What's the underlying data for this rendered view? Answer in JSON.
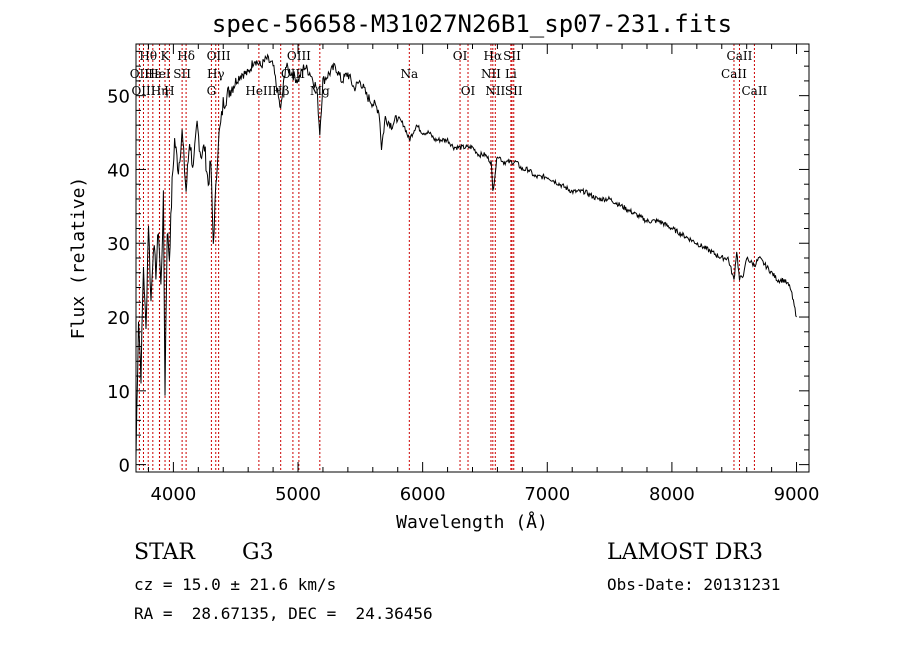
{
  "chart_data": {
    "type": "line",
    "title": "spec-56658-M31027N26B1_sp07-231.fits",
    "xlabel": "Wavelength (Å)",
    "ylabel": "Flux (relative)",
    "xlim": [
      3700,
      9100
    ],
    "ylim": [
      -1,
      57
    ],
    "xticks": [
      4000,
      5000,
      6000,
      7000,
      8000,
      9000
    ],
    "yticks": [
      0,
      10,
      20,
      30,
      40,
      50
    ],
    "line_color": "#cc0000",
    "series": [
      {
        "name": "flux",
        "color": "#000000",
        "x": [
          3700,
          3720,
          3740,
          3760,
          3780,
          3800,
          3820,
          3840,
          3860,
          3880,
          3900,
          3920,
          3933,
          3950,
          3968,
          3990,
          4010,
          4040,
          4070,
          4102,
          4130,
          4160,
          4190,
          4220,
          4250,
          4280,
          4300,
          4320,
          4340,
          4360,
          4380,
          4400,
          4430,
          4460,
          4500,
          4550,
          4600,
          4650,
          4700,
          4750,
          4800,
          4861,
          4900,
          4950,
          5000,
          5050,
          5100,
          5150,
          5175,
          5200,
          5250,
          5300,
          5350,
          5400,
          5450,
          5500,
          5550,
          5600,
          5650,
          5670,
          5700,
          5750,
          5800,
          5850,
          5893,
          5950,
          6000,
          6050,
          6100,
          6150,
          6200,
          6250,
          6300,
          6350,
          6400,
          6450,
          6500,
          6550,
          6563,
          6600,
          6650,
          6700,
          6750,
          6800,
          6850,
          6900,
          7000,
          7100,
          7200,
          7300,
          7400,
          7500,
          7600,
          7700,
          7800,
          7900,
          8000,
          8100,
          8200,
          8300,
          8400,
          8450,
          8498,
          8520,
          8542,
          8580,
          8600,
          8662,
          8700,
          8750,
          8800,
          8850,
          8900,
          8950,
          9000
        ],
        "y": [
          1,
          20,
          12,
          27,
          18,
          33,
          22,
          30,
          26,
          32,
          24,
          36,
          10,
          32,
          28,
          38,
          44,
          40,
          45,
          37,
          44,
          40,
          46,
          42,
          43,
          38,
          41,
          30,
          37,
          44,
          46,
          49,
          50,
          51,
          52,
          53,
          53,
          55,
          54,
          55,
          54,
          48,
          54,
          53,
          52,
          54,
          53,
          51,
          45,
          52,
          53,
          54,
          52,
          53,
          51,
          52,
          50,
          49,
          48,
          43,
          47,
          46,
          47,
          46,
          44,
          46,
          45,
          45,
          44,
          44,
          44,
          43,
          43,
          43,
          43,
          42,
          42,
          41,
          37,
          42,
          41,
          41,
          41,
          40,
          40,
          39,
          39,
          38,
          37,
          37,
          36,
          36,
          35,
          34,
          33,
          33,
          32,
          31,
          30,
          29,
          28,
          28,
          25,
          29,
          25,
          26,
          28,
          27,
          28,
          27,
          26,
          25,
          25,
          24,
          20
        ]
      }
    ],
    "spectral_lines": [
      {
        "label": "Hθ",
        "x": 3798,
        "row": 0
      },
      {
        "label": "OII",
        "x": 3727,
        "row": 1
      },
      {
        "label": "OIII",
        "x": 3760,
        "row": 2
      },
      {
        "label": "Hε",
        "x": 3835,
        "row": 1
      },
      {
        "label": "Hη",
        "x": 3889,
        "row": 2
      },
      {
        "label": "K",
        "x": 3933,
        "row": 0
      },
      {
        "label": "HeI",
        "x": 3888,
        "row": 1
      },
      {
        "label": "H",
        "x": 3968,
        "row": 2
      },
      {
        "label": "SII",
        "x": 4070,
        "row": 1
      },
      {
        "label": "Hδ",
        "x": 4102,
        "row": 0
      },
      {
        "label": "OIII",
        "x": 4363,
        "row": 0
      },
      {
        "label": "Hγ",
        "x": 4340,
        "row": 1
      },
      {
        "label": "G",
        "x": 4305,
        "row": 2
      },
      {
        "label": "HeII",
        "x": 4686,
        "row": 2
      },
      {
        "label": "Hβ",
        "x": 4861,
        "row": 2
      },
      {
        "label": "OIII",
        "x": 5007,
        "row": 0
      },
      {
        "label": "OIII",
        "x": 4959,
        "row": 1
      },
      {
        "label": "Mg",
        "x": 5175,
        "row": 2
      },
      {
        "label": "Na",
        "x": 5893,
        "row": 1
      },
      {
        "label": "OI",
        "x": 6300,
        "row": 0
      },
      {
        "label": "OI",
        "x": 6364,
        "row": 2
      },
      {
        "label": "Hα",
        "x": 6563,
        "row": 0
      },
      {
        "label": "NII",
        "x": 6548,
        "row": 1
      },
      {
        "label": "NII",
        "x": 6583,
        "row": 2
      },
      {
        "label": "SII",
        "x": 6717,
        "row": 0
      },
      {
        "label": "Li",
        "x": 6708,
        "row": 1
      },
      {
        "label": "SII",
        "x": 6731,
        "row": 2
      },
      {
        "label": "CaII",
        "x": 8542,
        "row": 0
      },
      {
        "label": "CaII",
        "x": 8498,
        "row": 1
      },
      {
        "label": "CaII",
        "x": 8662,
        "row": 2
      }
    ]
  },
  "info": {
    "object_class": "STAR",
    "subclass": "G3",
    "survey": "LAMOST DR3",
    "redshift_line": "cz = 15.0 ± 21.6 km/s",
    "obs_date_line": "Obs-Date: 20131231",
    "coords_line": "RA =  28.67135, DEC =  24.36456"
  }
}
